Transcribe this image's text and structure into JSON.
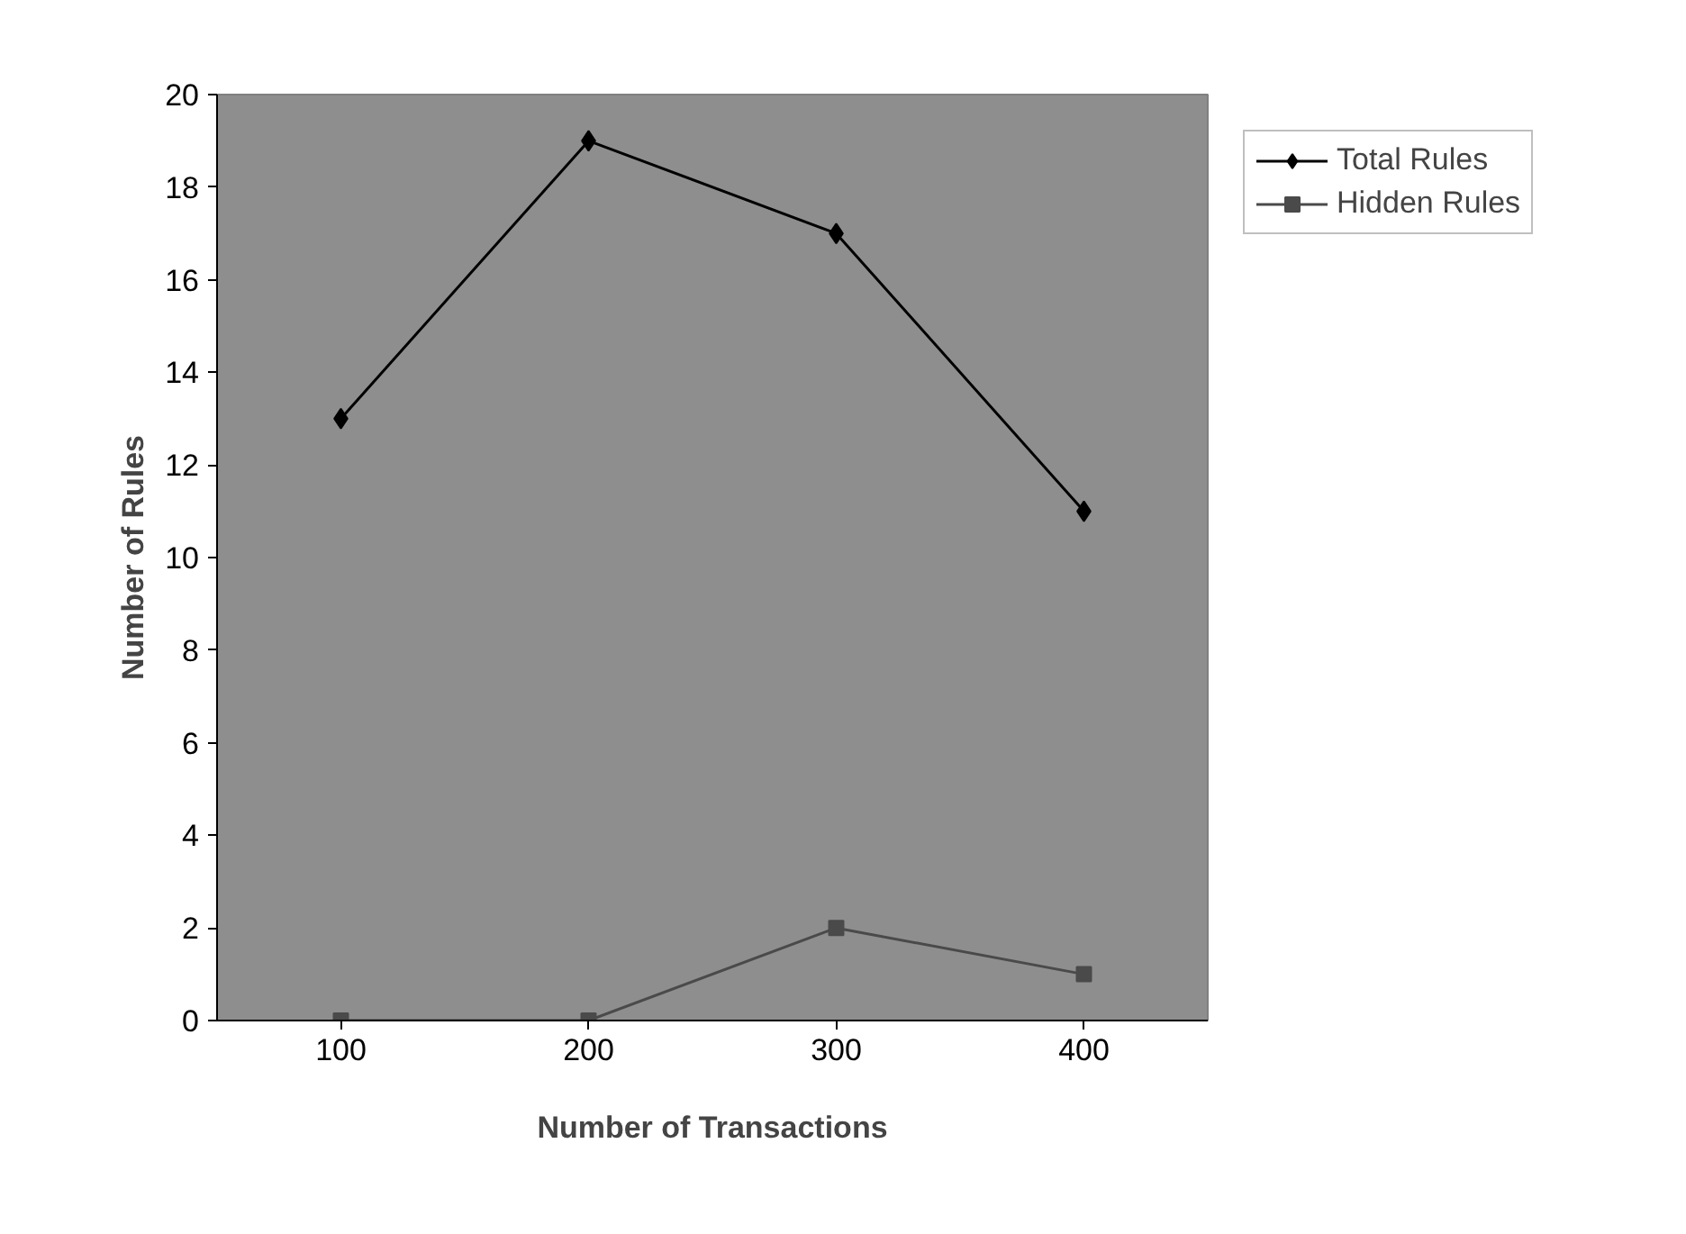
{
  "chart_data": {
    "type": "line",
    "xlabel": "Number of Transactions",
    "ylabel": "Number of Rules",
    "categories": [
      "100",
      "200",
      "300",
      "400"
    ],
    "series": [
      {
        "name": "Total Rules",
        "color": "#000000",
        "marker": "diamond",
        "values": [
          13,
          19,
          17,
          11
        ]
      },
      {
        "name": "Hidden Rules",
        "color": "#4a4a4a",
        "marker": "square",
        "values": [
          0,
          0,
          2,
          1
        ]
      }
    ],
    "ylim": [
      0,
      20
    ],
    "yticks": [
      0,
      2,
      4,
      6,
      8,
      10,
      12,
      14,
      16,
      18,
      20
    ],
    "grid": false,
    "legend": "top right",
    "line_style": "solid"
  }
}
